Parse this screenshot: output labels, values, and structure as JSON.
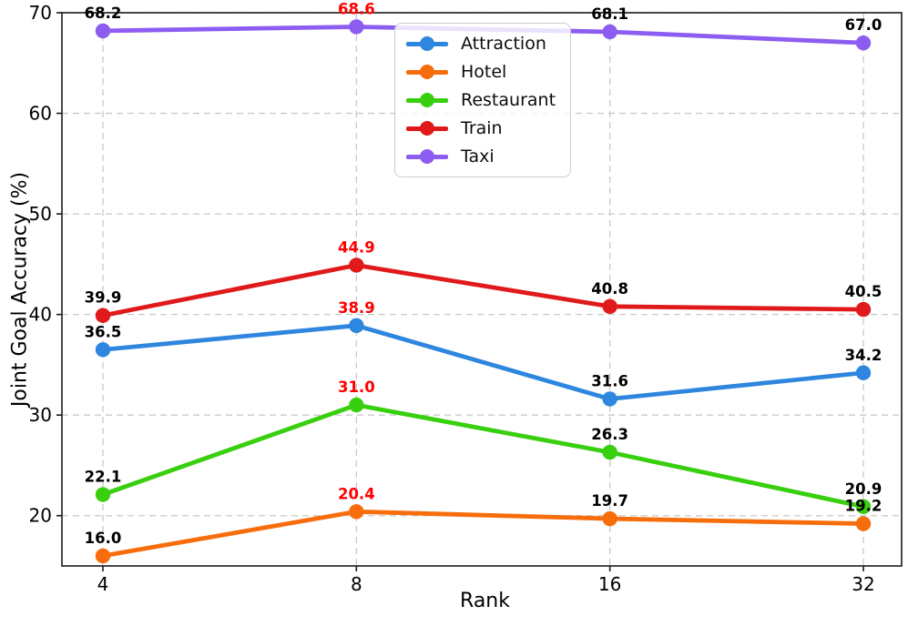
{
  "chart_data": {
    "type": "line",
    "title": "",
    "xlabel": "Rank",
    "ylabel": "Joint Goal Accuracy (%)",
    "x": [
      4,
      8,
      16,
      32
    ],
    "xticklabels": [
      "4",
      "8",
      "16",
      "32"
    ],
    "x_scale": "log2",
    "yticks": [
      20,
      30,
      40,
      50,
      60,
      70
    ],
    "ylim": [
      15,
      70
    ],
    "grid": true,
    "grid_color": "#c9c9c9",
    "legend_position": "upper center",
    "data_labels": true,
    "label_color": "#000000",
    "highlight_x": 8,
    "highlight_label_color": "#ff0000",
    "series": [
      {
        "name": "Attraction",
        "color": "#2e86de",
        "values": [
          36.5,
          38.9,
          31.6,
          34.2
        ]
      },
      {
        "name": "Hotel",
        "color": "#f76d0c",
        "values": [
          16.0,
          20.4,
          19.7,
          19.2
        ]
      },
      {
        "name": "Restaurant",
        "color": "#38cf0e",
        "values": [
          22.1,
          31.0,
          26.3,
          20.9
        ]
      },
      {
        "name": "Train",
        "color": "#e01a1a",
        "values": [
          39.9,
          44.9,
          40.8,
          40.5
        ]
      },
      {
        "name": "Taxi",
        "color": "#8d5cf0",
        "values": [
          68.2,
          68.6,
          68.1,
          67.0
        ]
      }
    ]
  }
}
